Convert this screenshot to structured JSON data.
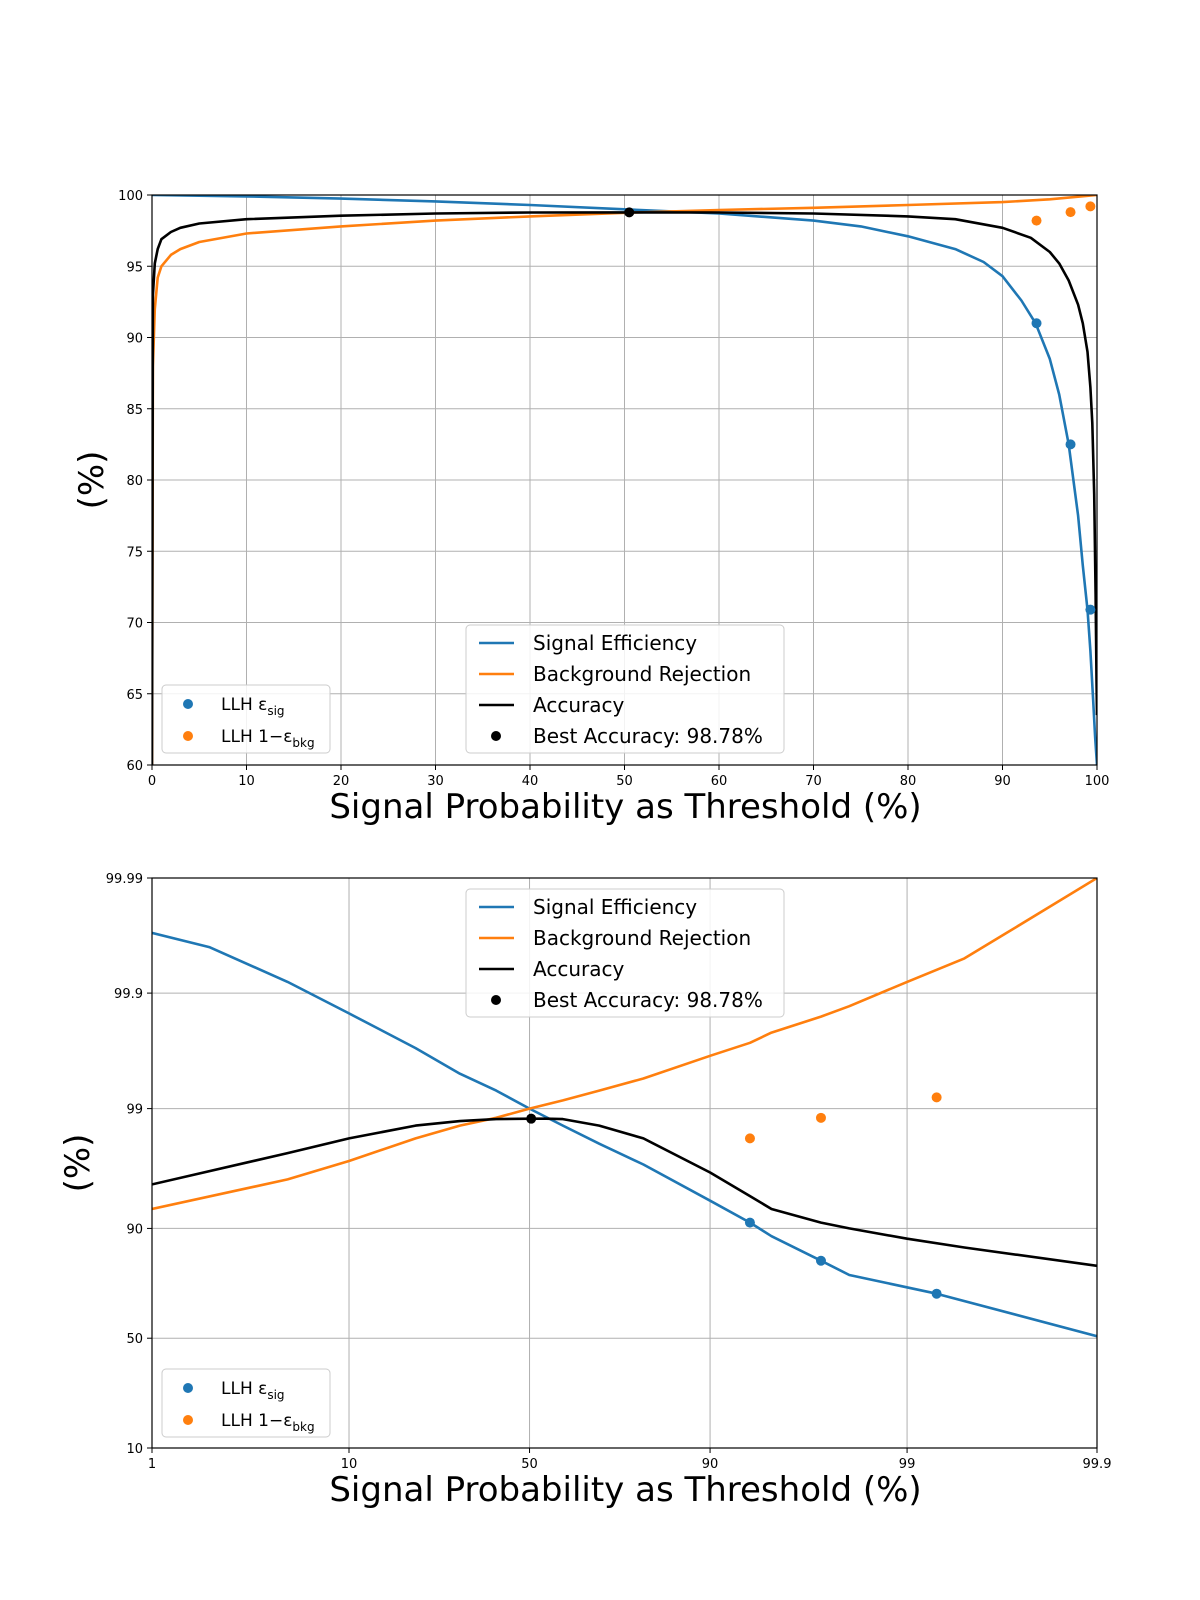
{
  "colors": {
    "signal": "#1f77b4",
    "background": "#ff7f0e",
    "accuracy": "#000000",
    "grid": "#b0b0b0"
  },
  "chart_data": [
    {
      "type": "line",
      "xlabel": "Signal Probability as Threshold (%)",
      "ylabel": "(%)",
      "xscale": "linear",
      "xlim": [
        0,
        100
      ],
      "ylim": [
        60,
        100
      ],
      "grid": true,
      "xticks": [
        "0",
        "10",
        "20",
        "30",
        "40",
        "50",
        "60",
        "70",
        "80",
        "90",
        "100"
      ],
      "yticks": [
        "60",
        "65",
        "70",
        "75",
        "80",
        "85",
        "90",
        "95",
        "100"
      ],
      "legend_main_placement": "lower-center",
      "legend_llh_placement": "lower-left",
      "series": [
        {
          "name": "Signal Efficiency",
          "color": "#1f77b4",
          "x": [
            0,
            10,
            20,
            30,
            40,
            50,
            55,
            60,
            70,
            75,
            80,
            85,
            88,
            90,
            92,
            93.5,
            95,
            96,
            97,
            98,
            98.5,
            99,
            99.3,
            99.6,
            99.8,
            100
          ],
          "y": [
            100,
            99.9,
            99.75,
            99.55,
            99.3,
            99.0,
            98.85,
            98.7,
            98.2,
            97.8,
            97.1,
            96.2,
            95.3,
            94.3,
            92.6,
            91.0,
            88.5,
            86.0,
            82.5,
            77.5,
            74.0,
            70.9,
            68.0,
            64.5,
            62.0,
            60
          ]
        },
        {
          "name": "Background Rejection",
          "color": "#ff7f0e",
          "x": [
            0,
            0.1,
            0.3,
            0.6,
            1,
            2,
            3,
            5,
            10,
            20,
            30,
            40,
            50,
            55,
            60,
            70,
            80,
            90,
            95,
            100
          ],
          "y": [
            60,
            88,
            92,
            94.2,
            95.0,
            95.8,
            96.2,
            96.7,
            97.3,
            97.8,
            98.2,
            98.5,
            98.75,
            98.85,
            98.95,
            99.1,
            99.3,
            99.5,
            99.7,
            100
          ]
        },
        {
          "name": "Accuracy",
          "color": "#000000",
          "x": [
            0,
            0.1,
            0.3,
            0.6,
            1,
            2,
            3,
            5,
            10,
            20,
            30,
            40,
            50,
            55,
            60,
            70,
            80,
            85,
            90,
            93,
            95,
            96,
            97,
            98,
            98.5,
            99,
            99.3,
            99.5,
            99.7,
            99.85,
            99.95,
            100
          ],
          "y": [
            60,
            93,
            95.2,
            96.2,
            96.9,
            97.4,
            97.7,
            98.0,
            98.3,
            98.55,
            98.7,
            98.77,
            98.78,
            98.78,
            98.77,
            98.7,
            98.5,
            98.3,
            97.7,
            97.0,
            96.0,
            95.2,
            94.0,
            92.3,
            91.0,
            89.0,
            86.5,
            84.0,
            79.0,
            72.0,
            66.0,
            63.5
          ]
        }
      ],
      "best_point": {
        "name": "Best Accuracy: 98.78%",
        "x": 50.5,
        "y": 98.78,
        "color": "#000000"
      },
      "llh_points": [
        {
          "name": "LLH εsig",
          "label_main": "LLH ε",
          "label_sub": "sig",
          "color": "#1f77b4",
          "x": [
            93.6,
            97.2,
            99.3
          ],
          "y": [
            91.0,
            82.5,
            70.9
          ]
        },
        {
          "name": "LLH 1−εbkg",
          "label_main": "LLH 1−ε",
          "label_sub": "bkg",
          "color": "#ff7f0e",
          "x": [
            93.6,
            97.2,
            99.3
          ],
          "y": [
            98.2,
            98.8,
            99.2
          ]
        }
      ]
    },
    {
      "type": "line",
      "xlabel": "Signal Probability as Threshold (%)",
      "ylabel": "(%)",
      "xscale": "logit",
      "yscale": "logit",
      "xlim": [
        1,
        99.9
      ],
      "ylim": [
        10,
        99.99
      ],
      "grid": true,
      "xticks": [
        "1",
        "10",
        "50",
        "90",
        "99",
        "99.9"
      ],
      "yticks": [
        "10",
        "50",
        "90",
        "99",
        "99.9",
        "99.99"
      ],
      "legend_main_placement": "upper-center",
      "legend_llh_placement": "lower-left",
      "series": [
        {
          "name": "Signal Efficiency",
          "color": "#1f77b4",
          "x": [
            1,
            2,
            5,
            10,
            20,
            30,
            40,
            50,
            60,
            70,
            80,
            90,
            93.6,
            95,
            97.2,
            98,
            99.3,
            99.9
          ],
          "y": [
            99.97,
            99.96,
            99.92,
            99.85,
            99.7,
            99.5,
            99.3,
            99.0,
            98.6,
            98.0,
            97.0,
            94.0,
            91.0,
            88.5,
            82.5,
            78.0,
            70.9,
            51.0
          ]
        },
        {
          "name": "Background Rejection",
          "color": "#ff7f0e",
          "x": [
            1,
            5,
            10,
            20,
            30,
            40,
            50,
            60,
            70,
            80,
            90,
            93.6,
            95,
            97.2,
            98,
            99,
            99.5,
            99.7,
            99.9
          ],
          "y": [
            93.0,
            96.0,
            97.2,
            98.2,
            98.6,
            98.8,
            99.0,
            99.15,
            99.3,
            99.45,
            99.65,
            99.73,
            99.78,
            99.84,
            99.87,
            99.92,
            99.95,
            99.97,
            99.99
          ]
        },
        {
          "name": "Accuracy",
          "color": "#000000",
          "x": [
            1,
            5,
            10,
            20,
            30,
            40,
            50,
            55,
            60,
            70,
            80,
            90,
            93.6,
            95,
            97.2,
            98,
            99,
            99.5,
            99.9
          ],
          "y": [
            95.6,
            97.6,
            98.2,
            98.6,
            98.72,
            98.77,
            98.78,
            98.78,
            98.77,
            98.6,
            98.2,
            96.5,
            94.5,
            93.0,
            91.0,
            90.0,
            88.0,
            86.0,
            81.0
          ]
        }
      ],
      "best_point": {
        "name": "Best Accuracy: 98.78%",
        "x": 50.5,
        "y": 98.78,
        "color": "#000000"
      },
      "llh_points": [
        {
          "name": "LLH εsig",
          "label_main": "LLH ε",
          "label_sub": "sig",
          "color": "#1f77b4",
          "x": [
            93.6,
            97.2,
            99.3
          ],
          "y": [
            91.0,
            82.5,
            70.9
          ]
        },
        {
          "name": "LLH 1−εbkg",
          "label_main": "LLH 1−ε",
          "label_sub": "bkg",
          "color": "#ff7f0e",
          "x": [
            93.6,
            97.2,
            99.3
          ],
          "y": [
            98.2,
            98.8,
            99.2
          ]
        }
      ]
    }
  ]
}
